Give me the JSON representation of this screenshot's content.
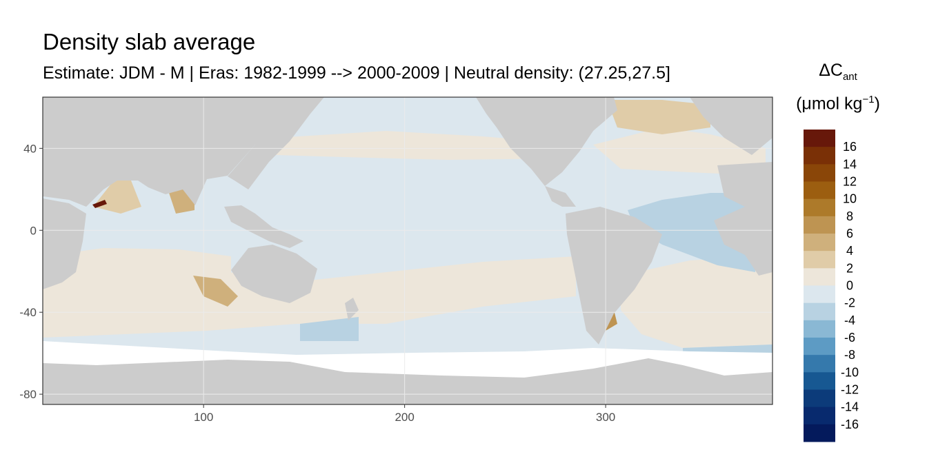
{
  "chart_data": {
    "type": "heatmap",
    "title": "Density slab average",
    "subtitle": "Estimate: JDM - M | Eras: 1982-1999 --> 2000-2009 | Neutral density: (27.25,27.5]",
    "xlabel": "",
    "ylabel": "",
    "x_ticks": [
      "100",
      "200",
      "300"
    ],
    "y_ticks": [
      "40",
      "0",
      "-40",
      "-80"
    ],
    "xlim": [
      20,
      383
    ],
    "ylim": [
      -85,
      65
    ],
    "grid": true,
    "legend": {
      "title_main": "ΔC",
      "title_sub": "ant",
      "unit_base": "(μmol kg",
      "unit_sup": "−1",
      "unit_end": ")",
      "placement": "right",
      "labels": [
        "16",
        "14",
        "12",
        "10",
        "8",
        "6",
        "4",
        "2",
        "0",
        "-2",
        "-4",
        "-6",
        "-8",
        "-10",
        "-12",
        "-14",
        "-16"
      ],
      "colors": [
        "#67180a",
        "#7a3006",
        "#8a4608",
        "#9c5e10",
        "#ad7a2a",
        "#be9452",
        "#cfb07c",
        "#e0cca8",
        "#ede6da",
        "#dce7ee",
        "#b8d2e2",
        "#8ab8d4",
        "#5d9bc4",
        "#3579ac",
        "#175892",
        "#0c3b7a",
        "#082a6e",
        "#041a5c"
      ]
    },
    "colors": {
      "land": "#cccccc",
      "no_data": "#ffffff",
      "grid": "#ebebeb"
    }
  }
}
